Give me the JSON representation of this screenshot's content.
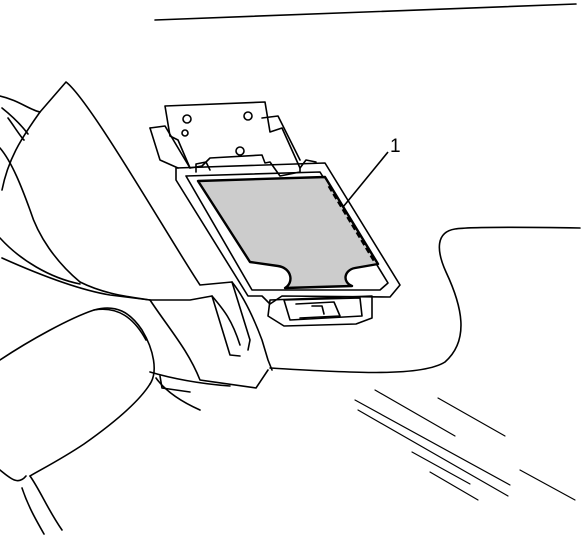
{
  "callouts": [
    {
      "number": "1"
    }
  ],
  "colors": {
    "line": "#000000",
    "part_fill": "#cccccc",
    "background": "#ffffff"
  }
}
